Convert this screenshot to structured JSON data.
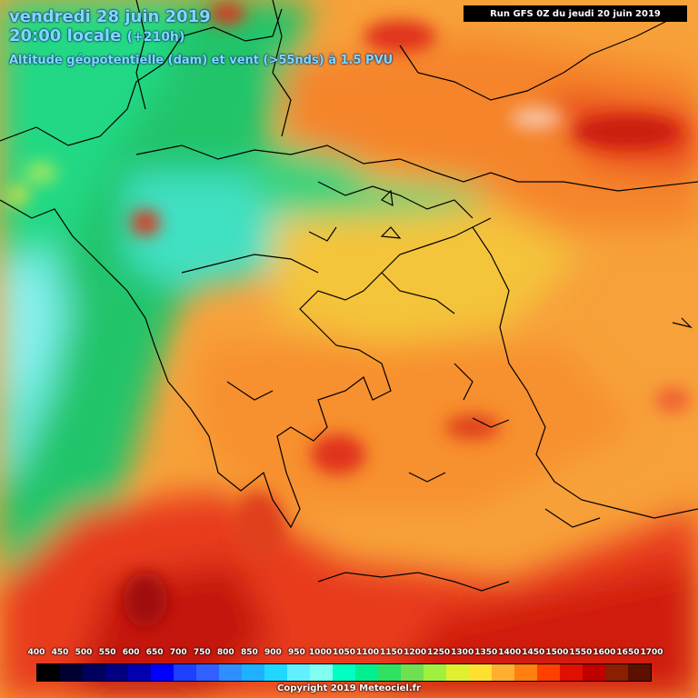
{
  "header": {
    "date": "vendredi 28 juin 2019",
    "time": "20:00 locale",
    "lead": "(+210h)",
    "field": "Altitude géopotentielle (dam) et vent (>55nds) à 1.5 PVU"
  },
  "run_label": "Run GFS 0Z du jeudi 20 juin 2019",
  "legend": {
    "labels": [
      "400",
      "450",
      "500",
      "550",
      "600",
      "650",
      "700",
      "750",
      "800",
      "850",
      "900",
      "950",
      "1000",
      "1050",
      "1100",
      "1150",
      "1200",
      "1250",
      "1300",
      "1350",
      "1400",
      "1450",
      "1500",
      "1550",
      "1600",
      "1650",
      "1700"
    ],
    "colors": [
      "#000000",
      "#000033",
      "#00005f",
      "#000080",
      "#0000b0",
      "#0000ff",
      "#1f3fff",
      "#3060ff",
      "#2f8fff",
      "#1fb0ff",
      "#20d8ff",
      "#60f0ff",
      "#80fff0",
      "#00ffc0",
      "#00f090",
      "#30e060",
      "#70e050",
      "#a0f040",
      "#e0f030",
      "#ffe030",
      "#ffb030",
      "#ff8010",
      "#ff4000",
      "#e01000",
      "#c00000",
      "#8a2000",
      "#5c1000"
    ]
  },
  "copyright": "Copyright 2019 Meteociel.fr"
}
